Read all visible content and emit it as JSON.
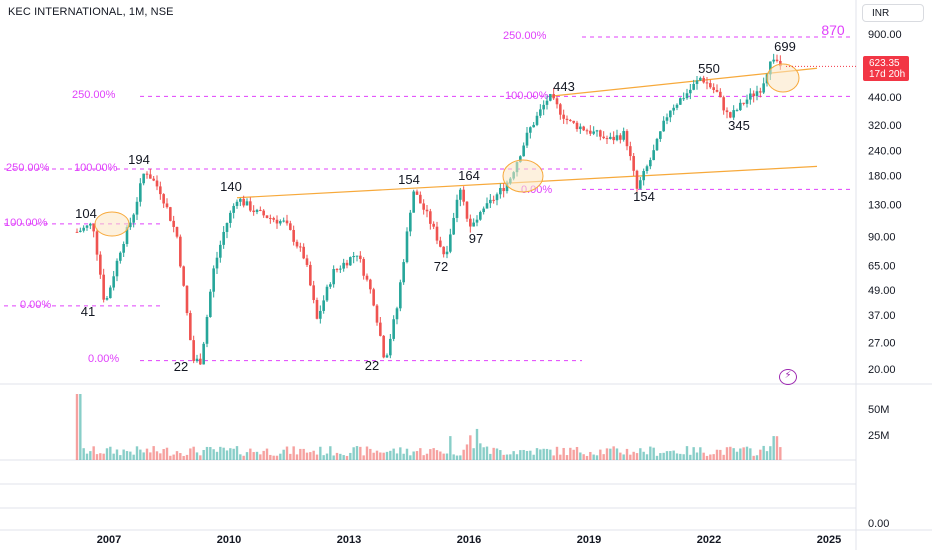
{
  "header": {
    "title": "KEC INTERNATIONAL, 1M, NSE",
    "currency_button": "INR"
  },
  "price_badge": {
    "price": "623.35",
    "countdown": "17d 20h",
    "value": 623.35
  },
  "colors": {
    "up": "#26a69a",
    "down": "#ef5350",
    "fib": "#e040fb",
    "trend": "#f7a93b",
    "highlight_fill": "#fbe6c2"
  },
  "chart_data": {
    "type": "candlestick",
    "title": "KEC INTERNATIONAL, 1M, NSE",
    "x_ticks": [
      "2007",
      "2010",
      "2013",
      "2016",
      "2019",
      "2022",
      "2025"
    ],
    "y_ticks_price": [
      "900.00",
      "640.00",
      "440.00",
      "320.00",
      "240.00",
      "180.00",
      "130.00",
      "90.00",
      "65.00",
      "49.00",
      "37.00",
      "27.00",
      "20.00"
    ],
    "y_ticks_volume": [
      "50M",
      "25M",
      "0.00"
    ],
    "y_scale": "log",
    "annotations": [
      {
        "text": "104",
        "x": 2006.6,
        "price": 104
      },
      {
        "text": "41",
        "x": 2006.9,
        "price": 41
      },
      {
        "text": "194",
        "x": 2007.9,
        "price": 194
      },
      {
        "text": "22",
        "x": 2009.2,
        "price": 22
      },
      {
        "text": "140",
        "x": 2010.2,
        "price": 140
      },
      {
        "text": "22",
        "x": 2013.9,
        "price": 22
      },
      {
        "text": "154",
        "x": 2014.6,
        "price": 154
      },
      {
        "text": "72",
        "x": 2015.4,
        "price": 72
      },
      {
        "text": "164",
        "x": 2015.8,
        "price": 164
      },
      {
        "text": "97",
        "x": 2016.0,
        "price": 97
      },
      {
        "text": "443",
        "x": 2018.0,
        "price": 443
      },
      {
        "text": "154",
        "x": 2020.2,
        "price": 154
      },
      {
        "text": "550",
        "x": 2021.8,
        "price": 550
      },
      {
        "text": "345",
        "x": 2022.5,
        "price": 345
      },
      {
        "text": "699",
        "x": 2023.6,
        "price": 699
      },
      {
        "text": "870",
        "x": 2024.0,
        "price": 870
      }
    ],
    "fib_levels": [
      {
        "labels": [
          "250.00%",
          "100.00%",
          "0.00%"
        ],
        "prices": [
          194,
          104,
          41
        ]
      },
      {
        "labels": [
          "250.00%",
          "100.00%",
          "0.00%"
        ],
        "prices": [
          443,
          194,
          22
        ]
      },
      {
        "labels": [
          "250.00%",
          "100.00%",
          "0.00%"
        ],
        "prices": [
          870,
          443,
          154
        ]
      }
    ],
    "trendlines": [
      {
        "from": [
          2010.2,
          140
        ],
        "to": [
          2024.7,
          200
        ]
      },
      {
        "from": [
          2018.0,
          443
        ],
        "to": [
          2024.7,
          610
        ]
      }
    ],
    "current_price": 623.35
  }
}
